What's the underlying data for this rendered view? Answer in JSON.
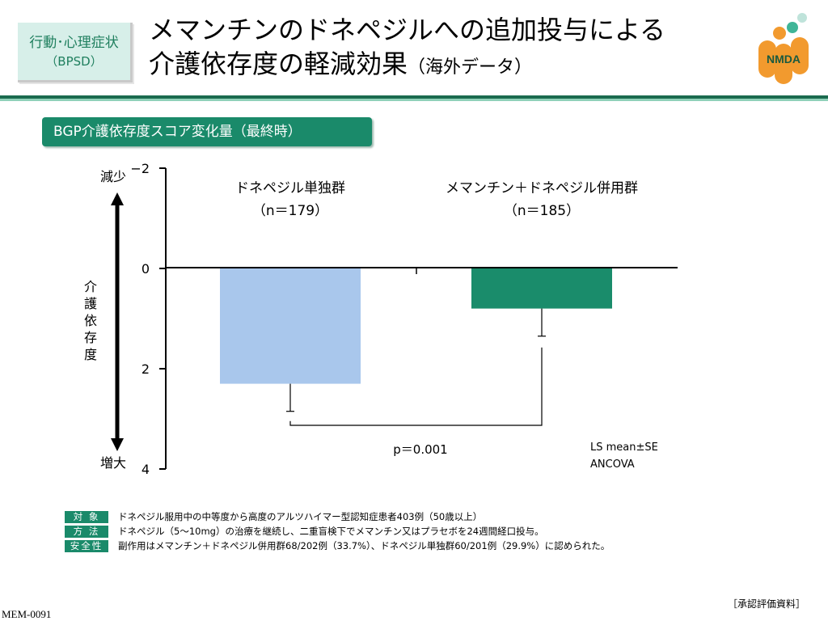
{
  "header": {
    "category_line1": "行動･心理症状",
    "category_line2": "（BPSD）",
    "title_line1": "メマンチンのドネペジルへの追加投与による",
    "title_line2": "介護依存度の軽減効果",
    "title_suffix": "（海外データ）",
    "logo_text": "NMDA"
  },
  "section_title": "BGP介護依存度スコア変化量（最終時）",
  "chart_data": {
    "type": "bar",
    "categories": [
      "ドネペジル単独群",
      "メマンチン＋ドネペジル併用群"
    ],
    "category_sublabels": [
      "（n＝179）",
      "（n＝185）"
    ],
    "values": [
      2.3,
      0.8
    ],
    "errors": [
      0.55,
      0.55
    ],
    "ylim": [
      -2,
      4
    ],
    "yticks": [
      -2,
      0,
      2,
      4
    ],
    "y_inverted": true,
    "ylabel": "介護依存度",
    "y_top_label": "減少",
    "y_bottom_label": "増大",
    "colors": [
      "#a9c7ec",
      "#1a8c6b"
    ],
    "annotation_pvalue": "p＝0.001",
    "stats_note_line1": "LS mean±SE",
    "stats_note_line2": "ANCOVA"
  },
  "footnotes": [
    {
      "label": "対 象",
      "text": "ドネペジル服用中の中等度から高度のアルツハイマー型認知症患者403例（50歳以上）"
    },
    {
      "label": "方 法",
      "text": "ドネペジル（5～10mg）の治療を継続し、二重盲検下でメマンチン又はプラセボを24週間経口投与。"
    },
    {
      "label": "安全性",
      "text": "副作用はメマンチン＋ドネペジル併用群68/202例（33.7%）、ドネペジル単独群60/201例（29.9%）に認められた。"
    }
  ],
  "source": "［承認評価資料］",
  "doc_code": "MEM-0091"
}
